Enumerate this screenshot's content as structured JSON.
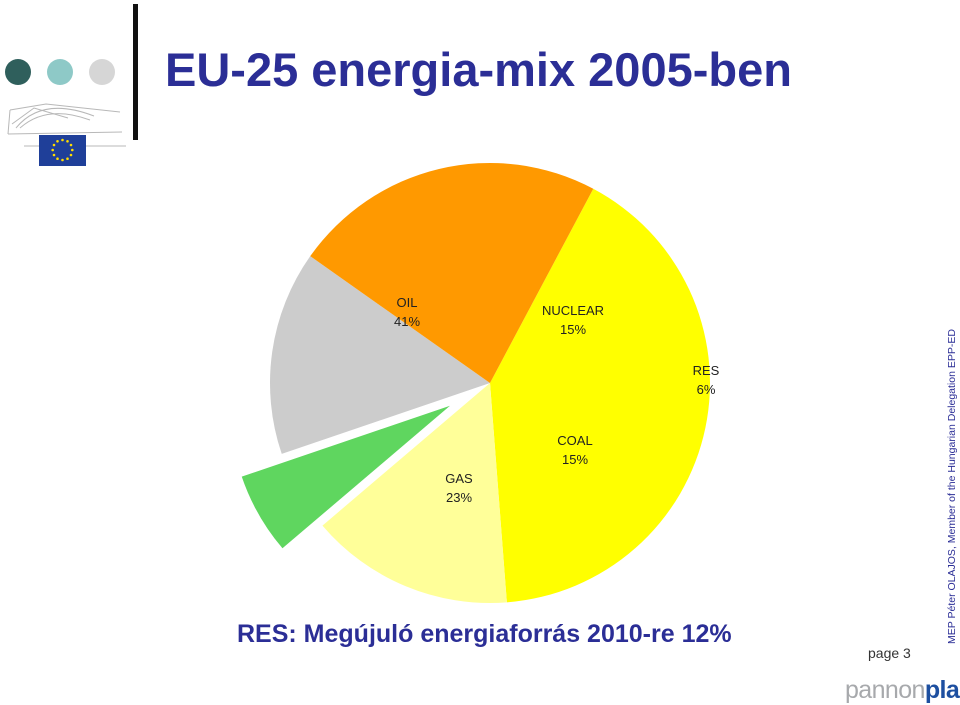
{
  "header": {
    "title": "EU-25 energia-mix 2005-ben",
    "dot_colors": [
      "#2f5f5c",
      "#8ec9c7",
      "#d6d6d6"
    ]
  },
  "logo": {
    "icon": "european-parliament-logo"
  },
  "chart_data": {
    "type": "pie",
    "title": "",
    "slices": [
      {
        "label": "OIL",
        "value": 41,
        "value_label": "41%",
        "color": "#ffff00",
        "exploded": false
      },
      {
        "label": "NUCLEAR",
        "value": 15,
        "value_label": "15%",
        "color": "#ffff99",
        "exploded": false
      },
      {
        "label": "RES",
        "value": 6,
        "value_label": "6%",
        "color": "#5fd65f",
        "exploded": true
      },
      {
        "label": "COAL",
        "value": 15,
        "value_label": "15%",
        "color": "#cccccc",
        "exploded": false
      },
      {
        "label": "GAS",
        "value": 23,
        "value_label": "23%",
        "color": "#ff9900",
        "exploded": false
      }
    ],
    "legend": "none",
    "labels": "inside"
  },
  "footer": {
    "subtitle": "RES: Megújuló energiaforrás 2010-re 12%",
    "page_label": "page 3",
    "side_text": "MEP Péter OLAJOS, Member of the Hungarian Delegation EPP-ED",
    "brand_part1": "pannon",
    "brand_part2": "plast"
  }
}
